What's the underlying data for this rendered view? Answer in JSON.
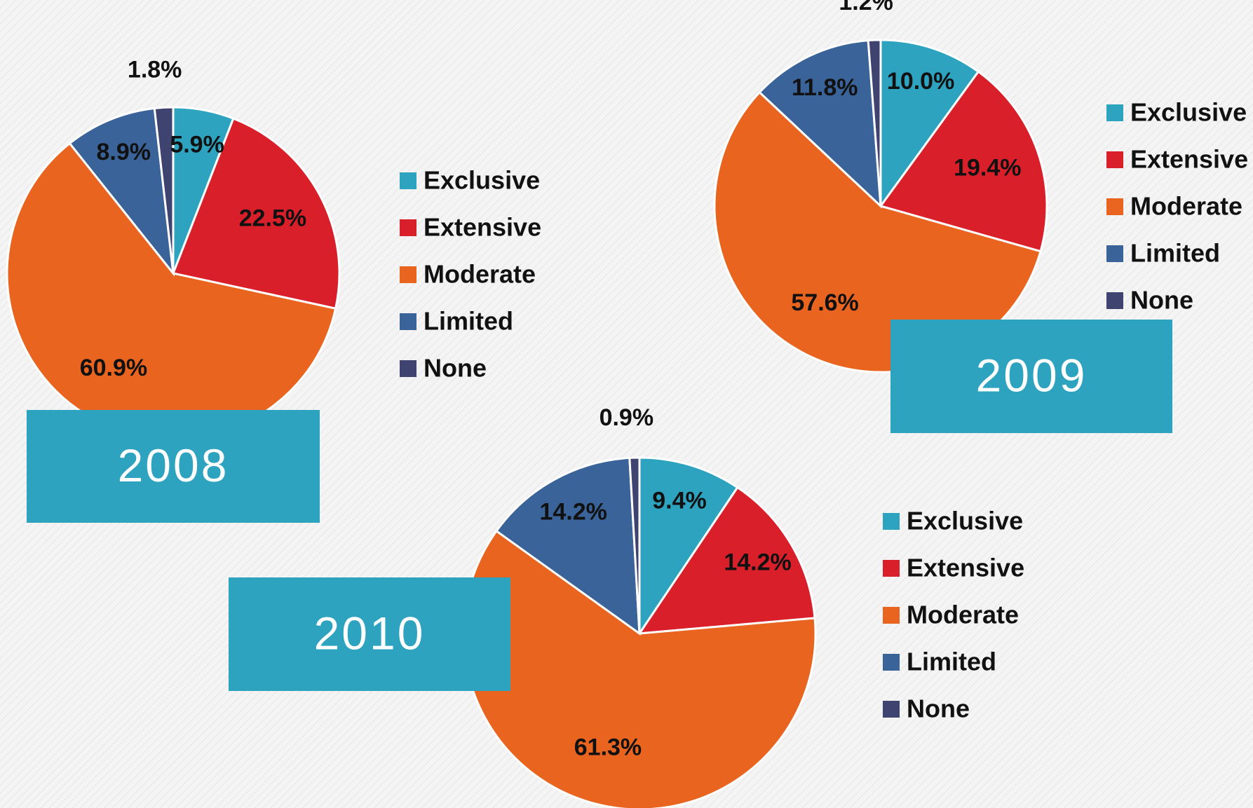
{
  "chart_data": [
    {
      "type": "pie",
      "title": "2008",
      "categories": [
        "Exclusive",
        "Extensive",
        "Moderate",
        "Limited",
        "None"
      ],
      "values": [
        5.9,
        22.5,
        60.9,
        8.9,
        1.8
      ],
      "value_labels": [
        "5.9%",
        "22.5%",
        "60.9%",
        "8.9%",
        "1.8%"
      ],
      "colors": [
        "#2ea3c0",
        "#d9202a",
        "#e8641f",
        "#3a6399",
        "#3f4370"
      ]
    },
    {
      "type": "pie",
      "title": "2009",
      "categories": [
        "Exclusive",
        "Extensive",
        "Moderate",
        "Limited",
        "None"
      ],
      "values": [
        10.0,
        19.4,
        57.6,
        11.8,
        1.2
      ],
      "value_labels": [
        "10.0%",
        "19.4%",
        "57.6%",
        "11.8%",
        "1.2%"
      ],
      "colors": [
        "#2ea3c0",
        "#d9202a",
        "#e8641f",
        "#3a6399",
        "#3f4370"
      ]
    },
    {
      "type": "pie",
      "title": "2010",
      "categories": [
        "Exclusive",
        "Extensive",
        "Moderate",
        "Limited",
        "None"
      ],
      "values": [
        9.4,
        14.2,
        61.3,
        14.2,
        0.9
      ],
      "value_labels": [
        "9.4%",
        "14.2%",
        "61.3%",
        "14.2%",
        "0.9%"
      ],
      "colors": [
        "#2ea3c0",
        "#d9202a",
        "#e8641f",
        "#3a6399",
        "#3f4370"
      ]
    }
  ]
}
